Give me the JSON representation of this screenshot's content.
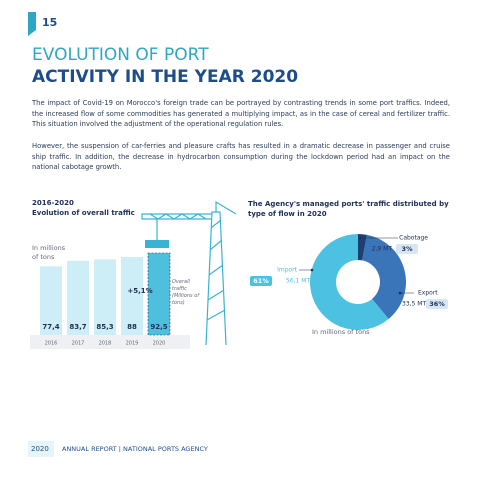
{
  "header": {
    "page_number": "15",
    "title_line1": "EVOLUTION OF PORT",
    "title_line2": "ACTIVITY IN THE YEAR 2020"
  },
  "paragraphs": [
    "The impact of Covid-19 on Morocco's foreign trade can be portrayed by contrasting trends in some port traffics. Indeed, the increased flow of some commodities has generated a multiplying impact, as in the case of cereal and fertilizer traffic. This situation involved the adjustment of the operational regulation rules.",
    "However, the suspension of car-ferries and pleasure crafts has resulted in a dramatic decrease in passenger and cruise ship traffic. In addition, the decrease in hydrocarbon consumption during the lockdown period had an impact on the national cabotage growth."
  ],
  "chart_data": [
    {
      "type": "bar",
      "title": "2016-2020",
      "subtitle": "Evolution of overall traffic",
      "unit_label": "In millions of tons",
      "categories": [
        "2016",
        "2017",
        "2018",
        "2019",
        "2020"
      ],
      "values": [
        77.4,
        83.7,
        85.3,
        88,
        92.5
      ],
      "value_labels": [
        "77,4",
        "83,7",
        "85,3",
        "88",
        "92,5"
      ],
      "colors": [
        "#cdeef6",
        "#cdeef6",
        "#cdeef6",
        "#cdeef6",
        "#4ec0de"
      ],
      "annotation": "+5,1%",
      "legend_label": "Overall traffic (Millions of tons)"
    },
    {
      "type": "pie",
      "title": "The Agency's managed ports' traffic distributed by type of flow in 2020",
      "categories": [
        "Cabotage",
        "Export",
        "Import"
      ],
      "values": [
        3,
        36,
        61
      ],
      "value_labels": [
        "3%",
        "36%",
        "61%"
      ],
      "tonnage_labels": [
        "2,9 MT",
        "33,5 MT",
        "56,1 MT"
      ],
      "colors": [
        "#1f3f73",
        "#3a74b9",
        "#4dc1e2"
      ],
      "unit_label": "In millions of tons"
    }
  ],
  "footer": {
    "year": "2020",
    "text": "ANNUAL REPORT | NATIONAL PORTS AGENCY"
  }
}
